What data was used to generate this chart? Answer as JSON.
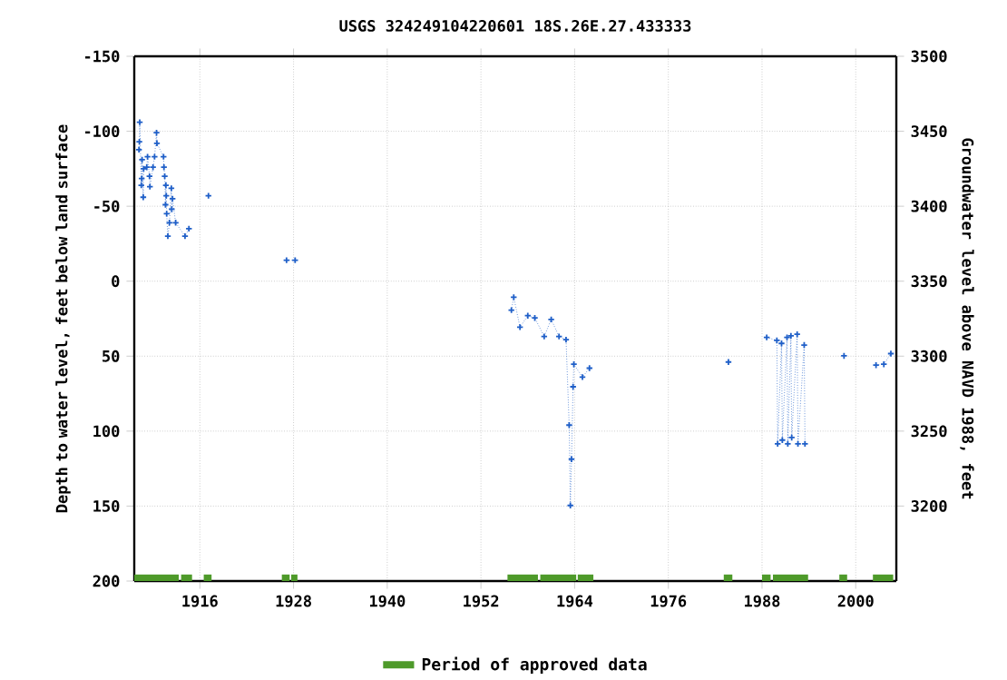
{
  "chart_data": {
    "type": "line",
    "title": "USGS 324249104220601 18S.26E.27.433333",
    "ylabel": "Depth to water level, feet below land surface",
    "y2label": "Groundwater level above NAVD 1988, feet",
    "xlim": [
      1907.6,
      2005.2
    ],
    "xticks": [
      1916,
      1928,
      1940,
      1952,
      1964,
      1976,
      1988,
      2000
    ],
    "ylim": [
      200,
      -150
    ],
    "yticks": [
      -150,
      -100,
      -50,
      0,
      50,
      100,
      150,
      200
    ],
    "y2lim": [
      3150,
      3500
    ],
    "y2ticks": [
      3200,
      3250,
      3300,
      3350,
      3400,
      3450,
      3500
    ],
    "grid": true,
    "legend": "bottom",
    "marker": "cross",
    "line_style": "dotted",
    "series": [
      {
        "color": "#1f5fc8",
        "x": [
          1908.2,
          1908.25,
          1908.3,
          1908.5,
          1908.55,
          1908.6,
          1908.75,
          1908.8,
          1909.2,
          1909.3,
          1909.55,
          1909.6,
          1910.0,
          1910.2,
          1910.45,
          1910.5,
          1911.35,
          1911.4,
          1911.5,
          1911.6,
          1911.65,
          1911.7,
          1911.75,
          1911.9,
          1912.1,
          1912.35,
          1912.4,
          1912.5,
          1912.9,
          1914.1,
          1914.6,
          1915.8,
          1917.1,
          1922.0,
          1927.1,
          1928.2,
          1940.0,
          1955.9,
          1956.2,
          1957.0,
          1958.0,
          1958.9,
          1960.1,
          1961.0,
          1962.0,
          1962.9,
          1963.3,
          1963.45,
          1963.6,
          1963.8,
          1963.9,
          1965.0,
          1965.9,
          1975.0,
          1983.7,
          1986.0,
          1988.6,
          1989.9,
          1990.0,
          1990.5,
          1990.6,
          1991.2,
          1991.3,
          1991.7,
          1991.8,
          1992.5,
          1992.6,
          1993.4,
          1993.5,
          1996.0,
          1998.5,
          2000.5,
          2002.6,
          2003.6,
          2004.5
        ],
        "values": [
          -87.7,
          -93,
          -106,
          -64,
          -68.5,
          -81,
          -56,
          -75,
          -76,
          -83,
          -70,
          -63,
          -76,
          -83,
          -99,
          -92,
          -83,
          -76,
          -70,
          -51,
          -64,
          -57,
          -45,
          -30,
          -39,
          -62,
          -48,
          -55,
          -39,
          -30,
          -35,
          null,
          -57,
          null,
          -14,
          -14,
          null,
          19.3,
          10.7,
          30.7,
          23,
          24.5,
          36.9,
          25.5,
          36.9,
          39,
          96,
          149.6,
          118.7,
          70.4,
          55.4,
          64,
          58,
          null,
          53.9,
          null,
          37.5,
          39.5,
          108.5,
          41.5,
          106,
          37.5,
          108.5,
          36.4,
          104.3,
          35.4,
          108.5,
          42.6,
          108.5,
          null,
          49.8,
          null,
          56,
          55.4,
          48.3
        ]
      },
      {
        "name": "Period of approved data",
        "color": "#4e9a2a",
        "marker": "none",
        "line_style": "solid",
        "x": [
          1907.6,
          1913.3,
          1913.4,
          1913.6,
          1915.0,
          1915.7,
          1916.5,
          1917.5,
          1922.0,
          1926.5,
          1927.5,
          1927.6,
          1927.7,
          1928.5,
          1940.0,
          1955.4,
          1959.3,
          1959.4,
          1959.6,
          1964.2,
          1964.3,
          1964.4,
          1966.4,
          1975.0,
          1983.1,
          1984.2,
          1986.0,
          1988.0,
          1989.1,
          1989.2,
          1989.4,
          1993.9,
          1996.0,
          1997.9,
          1998.9,
          2000.5,
          2002.2,
          2004.8
        ],
        "values": [
          198,
          198,
          null,
          198,
          198,
          null,
          198,
          198,
          null,
          198,
          198,
          null,
          198,
          198,
          null,
          198,
          198,
          null,
          198,
          198,
          null,
          198,
          198,
          null,
          198,
          198,
          null,
          198,
          198,
          null,
          198,
          198,
          null,
          198,
          198,
          null,
          198,
          198
        ]
      }
    ]
  }
}
